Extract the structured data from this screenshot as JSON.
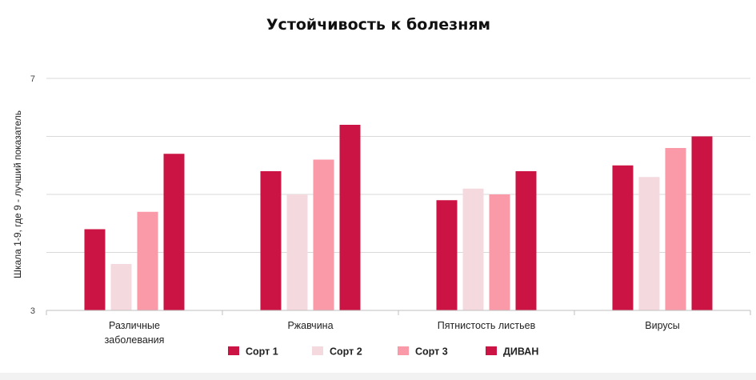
{
  "chart_data": {
    "type": "bar",
    "title": "Устойчивость к болезням",
    "xlabel": "",
    "ylabel": "Шкала 1-9, где 9 - лучший показатель",
    "ylim": [
      3,
      7
    ],
    "y_ticks_labeled": [
      "3",
      "7"
    ],
    "grid": true,
    "legend_position": "bottom",
    "categories": [
      [
        "Различные",
        "заболевания"
      ],
      [
        "Ржавчина"
      ],
      [
        "Пятнистость листьев"
      ],
      [
        "Вирусы"
      ]
    ],
    "series": [
      {
        "name": "Сорт 1",
        "color": "#cc1444",
        "values": [
          4.4,
          5.4,
          4.9,
          5.5
        ]
      },
      {
        "name": "Сорт 2",
        "color": "#f4d9df",
        "values": [
          3.8,
          5.0,
          5.1,
          5.3
        ]
      },
      {
        "name": "Сорт 3",
        "color": "#fa9aa8",
        "values": [
          4.7,
          5.6,
          5.0,
          5.8
        ]
      },
      {
        "name": "ДИВАН",
        "color": "#cc1444",
        "values": [
          5.7,
          6.2,
          5.4,
          6.0
        ]
      }
    ]
  }
}
